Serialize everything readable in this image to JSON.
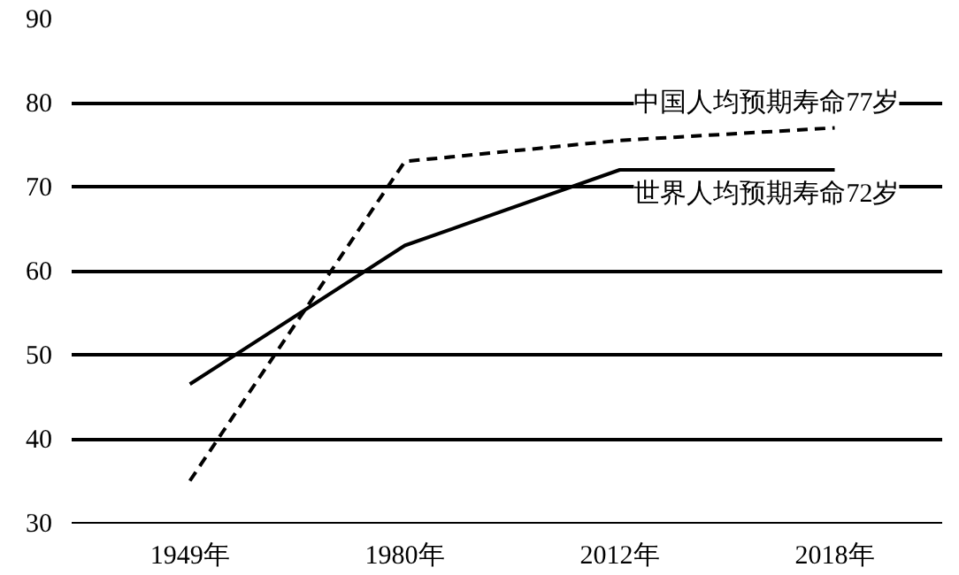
{
  "chart_data": {
    "type": "line",
    "categories": [
      "1949年",
      "1980年",
      "2012年",
      "2018年"
    ],
    "series": [
      {
        "name": "中国人均预期寿命77岁",
        "color": "#000000",
        "line_style": "dashed",
        "values": [
          35,
          73,
          75.5,
          77
        ]
      },
      {
        "name": "世界人均预期寿命72岁",
        "color": "#000000",
        "line_style": "solid",
        "values": [
          46.5,
          63,
          72,
          72
        ]
      }
    ],
    "ylim": [
      30,
      90
    ],
    "yticks": [
      30,
      40,
      50,
      60,
      70,
      80,
      90
    ],
    "grid": "y",
    "marker": "none"
  }
}
